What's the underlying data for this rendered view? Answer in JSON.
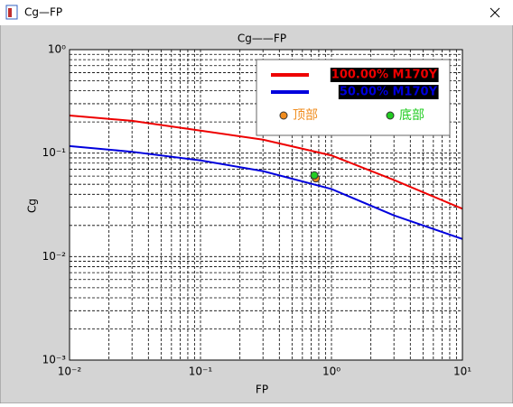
{
  "window": {
    "title": "Cg—FP"
  },
  "chart_data": {
    "type": "line",
    "title": "Cg——FP",
    "x_label": "FP",
    "y_label": "Cg",
    "log_x": true,
    "log_y": true,
    "grid": true,
    "minor_grid": true,
    "legend": "upper right",
    "xlim": [
      0.01,
      10
    ],
    "ylim": [
      0.001,
      1
    ],
    "xticks": [
      {
        "value": 0.01,
        "label": "10⁻²"
      },
      {
        "value": 0.1,
        "label": "10⁻¹"
      },
      {
        "value": 1,
        "label": "10⁰"
      },
      {
        "value": 10,
        "label": "10¹"
      }
    ],
    "yticks": [
      {
        "value": 0.001,
        "label": "10⁻³"
      },
      {
        "value": 0.01,
        "label": "10⁻²"
      },
      {
        "value": 0.1,
        "label": "10⁻¹"
      },
      {
        "value": 1,
        "label": "10⁰"
      }
    ],
    "x": [
      0.01,
      0.03,
      0.1,
      0.3,
      1,
      3,
      10
    ],
    "series": [
      {
        "name": "100.00% M170Y",
        "color": "#ee0000",
        "values": [
          0.231,
          0.205,
          0.165,
          0.135,
          0.095,
          0.055,
          0.029
        ]
      },
      {
        "name": "50.00% M170Y",
        "color": "#0000dd",
        "values": [
          0.117,
          0.103,
          0.085,
          0.067,
          0.045,
          0.025,
          0.0148
        ]
      }
    ],
    "points": [
      {
        "name": "顶部",
        "color": "#f08c1e",
        "x": 0.76,
        "y": 0.057
      },
      {
        "name": "底部",
        "color": "#22cc22",
        "x": 0.74,
        "y": 0.061
      }
    ]
  }
}
